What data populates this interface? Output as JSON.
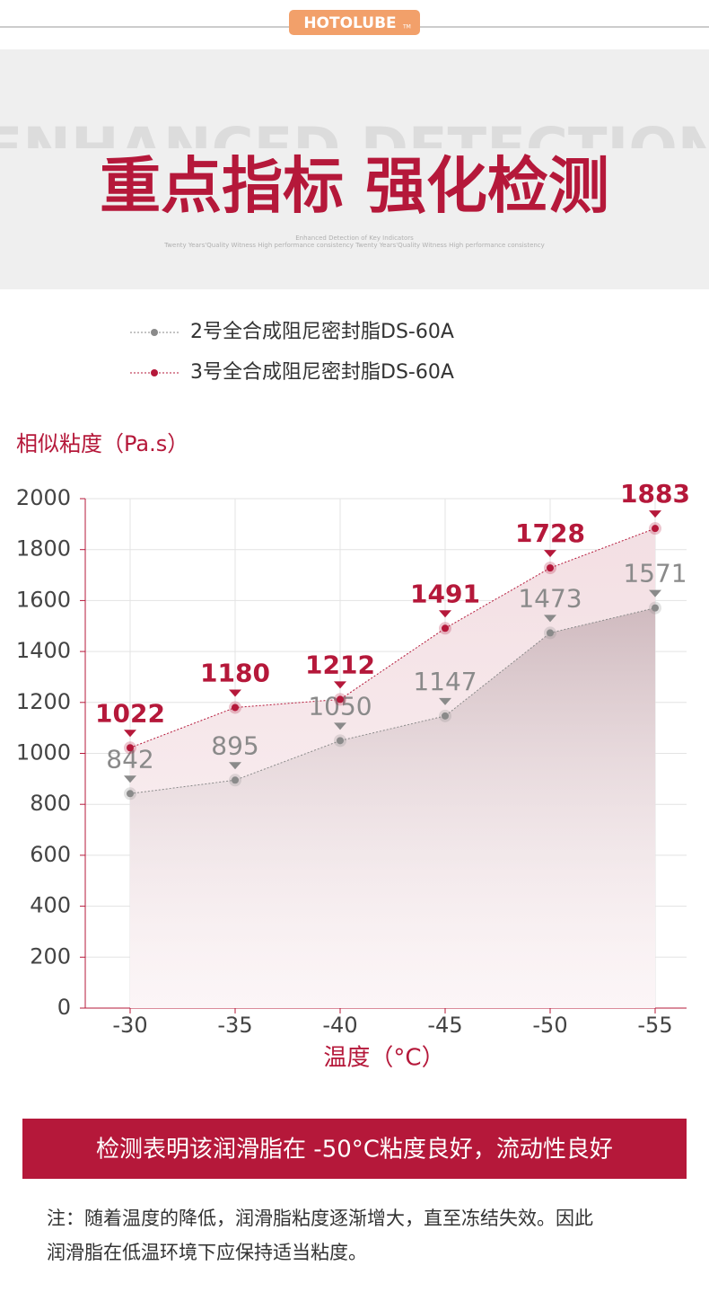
{
  "header": {
    "brand": "HOTOLUBE",
    "brand_mark": "TM",
    "watermark": "ENHANCED DETECTION",
    "title": "重点指标 强化检测",
    "subtitle": "Enhanced Detection of Key Indicators",
    "tagline": "Twenty Years'Quality Witness High performance consistency Twenty Years'Quality Witness High performance consistency"
  },
  "chart_data": {
    "type": "area",
    "y_label": "相似粘度（Pa.s）",
    "x_label": "温度（°C）",
    "categories": [
      "-30",
      "-35",
      "-40",
      "-45",
      "-50",
      "-55"
    ],
    "series": [
      {
        "name": "2号全合成阻尼密封脂DS-60A",
        "color": "#8a8a8a",
        "values": [
          842,
          895,
          1050,
          1147,
          1473,
          1571
        ]
      },
      {
        "name": "3号全合成阻尼密封脂DS-60A",
        "color": "#b5183a",
        "values": [
          1022,
          1180,
          1212,
          1491,
          1728,
          1883
        ]
      }
    ],
    "ylim": [
      0,
      2000
    ],
    "yticks": [
      0,
      200,
      400,
      600,
      800,
      1000,
      1200,
      1400,
      1600,
      1800,
      2000
    ],
    "grid": true
  },
  "banner": "检测表明该润滑脂在 -50°C粘度良好，流动性良好",
  "note": {
    "lines": [
      "注：随着温度的降低，润滑脂粘度逐渐增大，直至冻结失效。因此",
      "润滑脂在低温环境下应保持适当粘度。"
    ]
  }
}
